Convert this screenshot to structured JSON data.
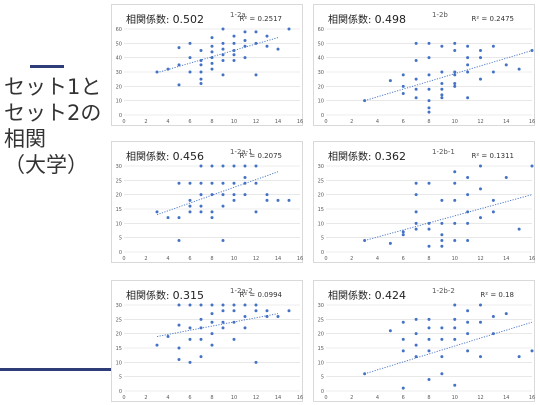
{
  "slide": {
    "title_lines": [
      "セット1と",
      "セット2の",
      "相関",
      "（大学）"
    ],
    "accent_color": "#2e3d77"
  },
  "chart_data": [
    {
      "type": "scatter",
      "corr_label": "相関係数:",
      "corr_value": "0.502",
      "subtitle": "1-2a",
      "r2": "R² = 0.2517",
      "xlim": [
        0,
        16
      ],
      "ylim": [
        0,
        60
      ],
      "xticks": [
        0,
        2,
        4,
        6,
        8,
        10,
        12,
        14,
        16
      ],
      "yticks": [
        0,
        10,
        20,
        30,
        40,
        50,
        60
      ],
      "grid": true,
      "marker_color": "#4472c4",
      "trendline": {
        "x": [
          3,
          14
        ],
        "y": [
          29.5,
          54
        ]
      },
      "x": [
        3,
        4,
        5,
        5,
        5,
        6,
        6,
        6,
        7,
        7,
        7,
        7,
        7,
        7,
        8,
        8,
        8,
        8,
        8,
        8,
        9,
        9,
        9,
        9,
        9,
        9,
        10,
        10,
        10,
        10,
        10,
        11,
        11,
        11,
        11,
        12,
        12,
        12,
        13,
        13,
        14,
        15
      ],
      "y": [
        30,
        32,
        35,
        47,
        21,
        50,
        40,
        30,
        45,
        38,
        25,
        22,
        35,
        30,
        54,
        48,
        44,
        40,
        36,
        32,
        60,
        50,
        46,
        42,
        38,
        28,
        55,
        50,
        45,
        42,
        38,
        58,
        52,
        48,
        40,
        58,
        50,
        28,
        55,
        48,
        46,
        60
      ]
    },
    {
      "type": "scatter",
      "corr_label": "相関係数:",
      "corr_value": "0.498",
      "subtitle": "1-2b",
      "r2": "R² = 0.2475",
      "xlim": [
        0,
        16
      ],
      "ylim": [
        0,
        60
      ],
      "xticks": [
        0,
        2,
        4,
        6,
        8,
        10,
        12,
        14,
        16
      ],
      "yticks": [
        0,
        10,
        20,
        30,
        40,
        50,
        60
      ],
      "grid": true,
      "marker_color": "#4472c4",
      "trendline": {
        "x": [
          3,
          16
        ],
        "y": [
          10,
          45
        ]
      },
      "x": [
        3,
        5,
        6,
        6,
        6,
        7,
        7,
        7,
        7,
        7,
        8,
        8,
        8,
        8,
        8,
        8,
        8,
        9,
        9,
        9,
        9,
        9,
        9,
        10,
        10,
        10,
        10,
        10,
        10,
        11,
        11,
        11,
        11,
        11,
        12,
        12,
        12,
        13,
        13,
        14,
        15,
        16
      ],
      "y": [
        10,
        24,
        28,
        20,
        15,
        50,
        38,
        25,
        18,
        12,
        50,
        40,
        28,
        18,
        10,
        5,
        2,
        48,
        30,
        22,
        18,
        14,
        12,
        50,
        45,
        30,
        28,
        22,
        20,
        48,
        40,
        35,
        30,
        12,
        45,
        40,
        25,
        48,
        30,
        35,
        32,
        45
      ]
    },
    {
      "type": "scatter",
      "corr_label": "相関係数:",
      "corr_value": "0.456",
      "subtitle": "1-2a-1",
      "r2": "R² = 0.2075",
      "xlim": [
        0,
        16
      ],
      "ylim": [
        0,
        30
      ],
      "xticks": [
        0,
        2,
        4,
        6,
        8,
        10,
        12,
        14,
        16
      ],
      "yticks": [
        0,
        5,
        10,
        15,
        20,
        25,
        30
      ],
      "grid": true,
      "marker_color": "#4472c4",
      "trendline": {
        "x": [
          3,
          14
        ],
        "y": [
          13,
          28
        ]
      },
      "x": [
        3,
        4,
        5,
        5,
        5,
        6,
        6,
        6,
        6,
        7,
        7,
        7,
        7,
        7,
        8,
        8,
        8,
        8,
        8,
        9,
        9,
        9,
        9,
        9,
        10,
        10,
        10,
        10,
        11,
        11,
        11,
        11,
        12,
        12,
        12,
        13,
        13,
        14,
        15
      ],
      "y": [
        14,
        12,
        24,
        12,
        4,
        24,
        18,
        16,
        14,
        30,
        24,
        20,
        16,
        14,
        30,
        24,
        20,
        14,
        12,
        30,
        24,
        20,
        16,
        4,
        30,
        24,
        20,
        18,
        30,
        26,
        24,
        20,
        30,
        24,
        14,
        20,
        18,
        18,
        18
      ]
    },
    {
      "type": "scatter",
      "corr_label": "相関係数:",
      "corr_value": "0.362",
      "subtitle": "1-2b-1",
      "r2": "R² = 0.1311",
      "xlim": [
        0,
        16
      ],
      "ylim": [
        0,
        30
      ],
      "xticks": [
        0,
        2,
        4,
        6,
        8,
        10,
        12,
        14,
        16
      ],
      "yticks": [
        0,
        5,
        10,
        15,
        20,
        25,
        30
      ],
      "grid": true,
      "marker_color": "#4472c4",
      "trendline": {
        "x": [
          3,
          16
        ],
        "y": [
          4,
          20
        ]
      },
      "x": [
        3,
        5,
        6,
        6,
        7,
        7,
        7,
        7,
        7,
        8,
        8,
        8,
        8,
        9,
        9,
        9,
        9,
        9,
        10,
        10,
        10,
        10,
        10,
        11,
        11,
        11,
        11,
        11,
        12,
        12,
        12,
        13,
        13,
        14,
        15,
        16
      ],
      "y": [
        4,
        3,
        6,
        7,
        24,
        20,
        14,
        10,
        8,
        24,
        10,
        8,
        2,
        18,
        10,
        6,
        4,
        2,
        28,
        24,
        18,
        10,
        4,
        26,
        20,
        14,
        10,
        4,
        30,
        22,
        12,
        18,
        14,
        26,
        8,
        30
      ]
    },
    {
      "type": "scatter",
      "corr_label": "相関係数:",
      "corr_value": "0.315",
      "subtitle": "1-2a-2",
      "r2": "R² = 0.0994",
      "xlim": [
        0,
        16
      ],
      "ylim": [
        0,
        30
      ],
      "xticks": [
        0,
        2,
        4,
        6,
        8,
        10,
        12,
        14,
        16
      ],
      "yticks": [
        0,
        5,
        10,
        15,
        20,
        25,
        30
      ],
      "grid": true,
      "marker_color": "#4472c4",
      "trendline": {
        "x": [
          3,
          14
        ],
        "y": [
          19,
          27
        ]
      },
      "x": [
        3,
        4,
        5,
        5,
        5,
        5,
        6,
        6,
        6,
        6,
        7,
        7,
        7,
        7,
        7,
        8,
        8,
        8,
        8,
        8,
        9,
        9,
        9,
        9,
        10,
        10,
        10,
        10,
        11,
        11,
        11,
        12,
        12,
        12,
        13,
        13,
        14,
        15
      ],
      "y": [
        16,
        19,
        30,
        23,
        15,
        11,
        30,
        22,
        18,
        10,
        30,
        25,
        22,
        18,
        12,
        30,
        27,
        24,
        20,
        16,
        30,
        28,
        24,
        22,
        30,
        28,
        24,
        18,
        30,
        26,
        22,
        30,
        28,
        10,
        28,
        26,
        26,
        28
      ]
    },
    {
      "type": "scatter",
      "corr_label": "相関係数:",
      "corr_value": "0.424",
      "subtitle": "1-2b-2",
      "r2": "R² = 0.18",
      "xlim": [
        0,
        16
      ],
      "ylim": [
        0,
        30
      ],
      "xticks": [
        0,
        2,
        4,
        6,
        8,
        10,
        12,
        14,
        16
      ],
      "yticks": [
        0,
        5,
        10,
        15,
        20,
        25,
        30
      ],
      "grid": true,
      "marker_color": "#4472c4",
      "trendline": {
        "x": [
          3,
          16
        ],
        "y": [
          6,
          24
        ]
      },
      "x": [
        3,
        5,
        6,
        6,
        6,
        6,
        7,
        7,
        7,
        7,
        8,
        8,
        8,
        8,
        8,
        9,
        9,
        9,
        9,
        10,
        10,
        10,
        10,
        10,
        11,
        11,
        11,
        11,
        12,
        12,
        12,
        13,
        13,
        14,
        15,
        16
      ],
      "y": [
        6,
        21,
        24,
        18,
        14,
        1,
        25,
        20,
        16,
        12,
        25,
        22,
        18,
        14,
        4,
        22,
        18,
        12,
        6,
        30,
        25,
        22,
        18,
        2,
        28,
        24,
        20,
        14,
        30,
        24,
        12,
        26,
        20,
        27,
        12,
        14
      ]
    }
  ]
}
